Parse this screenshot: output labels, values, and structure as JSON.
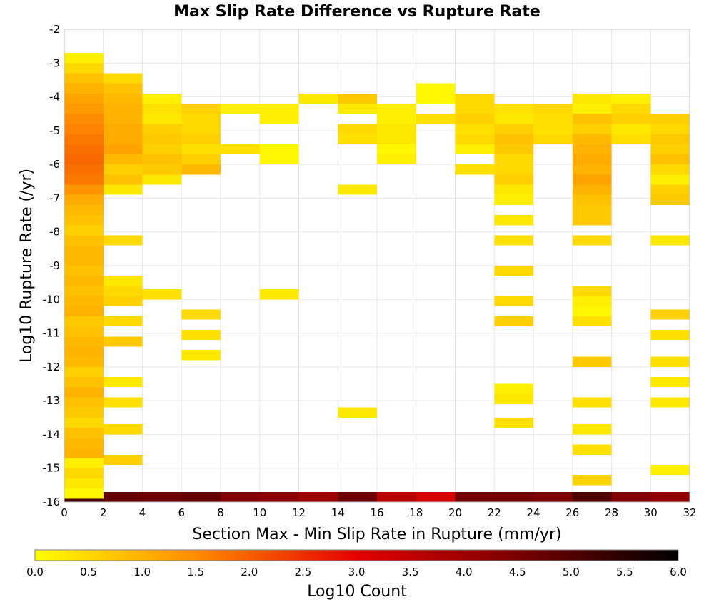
{
  "chart_data": {
    "type": "heatmap",
    "title": "Max Slip Rate Difference vs Rupture Rate",
    "xlabel": "Section Max - Min Slip Rate in Rupture (mm/yr)",
    "ylabel": "Log10 Rupture Rate (/yr)",
    "xlim": [
      0,
      32
    ],
    "ylim": [
      -16,
      -2
    ],
    "x_ticks": [
      0,
      2,
      4,
      6,
      8,
      10,
      12,
      14,
      16,
      18,
      20,
      22,
      24,
      26,
      28,
      30,
      32
    ],
    "y_ticks": [
      -2,
      -3,
      -4,
      -5,
      -6,
      -7,
      -8,
      -9,
      -10,
      -11,
      -12,
      -13,
      -14,
      -15,
      -16
    ],
    "grid": true,
    "colorbar": {
      "label": "Log10 Count",
      "min": 0.0,
      "max": 6.0,
      "ticks": [
        "0.0",
        "0.5",
        "1.0",
        "1.5",
        "2.0",
        "2.5",
        "3.0",
        "3.5",
        "4.0",
        "4.5",
        "5.0",
        "5.5",
        "6.0"
      ],
      "colormap": [
        {
          "v": 0.0,
          "c": "#ffff00"
        },
        {
          "v": 1.5,
          "c": "#ff8c00"
        },
        {
          "v": 3.0,
          "c": "#e60000"
        },
        {
          "v": 4.5,
          "c": "#7a0000"
        },
        {
          "v": 6.0,
          "c": "#000000"
        }
      ]
    },
    "cell_height": 0.3,
    "cells": [
      [
        0,
        -16.0,
        5.1
      ],
      [
        2,
        -16.0,
        4.8
      ],
      [
        4,
        -16.0,
        4.7
      ],
      [
        6,
        -16.0,
        4.8
      ],
      [
        8,
        -16.0,
        4.4
      ],
      [
        10,
        -16.0,
        4.3
      ],
      [
        12,
        -16.0,
        4.0
      ],
      [
        14,
        -16.0,
        4.7
      ],
      [
        16,
        -16.0,
        3.6
      ],
      [
        18,
        -16.0,
        3.2
      ],
      [
        20,
        -16.0,
        4.6
      ],
      [
        22,
        -16.0,
        4.6
      ],
      [
        24,
        -16.0,
        4.5
      ],
      [
        26,
        -16.0,
        5.0
      ],
      [
        28,
        -16.0,
        4.4
      ],
      [
        30,
        -16.0,
        4.2
      ],
      [
        0,
        -3.0,
        0.2
      ],
      [
        0,
        -3.3,
        0.5
      ],
      [
        0,
        -3.6,
        0.8
      ],
      [
        0,
        -3.9,
        1.0
      ],
      [
        0,
        -4.2,
        1.2
      ],
      [
        0,
        -4.5,
        1.3
      ],
      [
        0,
        -4.8,
        1.5
      ],
      [
        0,
        -5.1,
        1.6
      ],
      [
        0,
        -5.4,
        1.7
      ],
      [
        0,
        -5.7,
        1.8
      ],
      [
        0,
        -6.0,
        1.9
      ],
      [
        0,
        -6.3,
        1.8
      ],
      [
        0,
        -6.6,
        1.7
      ],
      [
        0,
        -6.9,
        1.4
      ],
      [
        0,
        -7.2,
        1.1
      ],
      [
        0,
        -7.5,
        0.9
      ],
      [
        0,
        -7.8,
        0.8
      ],
      [
        0,
        -8.1,
        0.6
      ],
      [
        0,
        -8.4,
        0.8
      ],
      [
        0,
        -8.7,
        0.9
      ],
      [
        0,
        -9.0,
        0.9
      ],
      [
        0,
        -9.3,
        0.8
      ],
      [
        0,
        -9.6,
        0.9
      ],
      [
        0,
        -9.9,
        0.8
      ],
      [
        0,
        -10.2,
        0.9
      ],
      [
        0,
        -10.5,
        1.0
      ],
      [
        0,
        -10.8,
        0.7
      ],
      [
        0,
        -11.1,
        0.8
      ],
      [
        0,
        -11.4,
        0.9
      ],
      [
        0,
        -11.7,
        1.0
      ],
      [
        0,
        -12.0,
        0.9
      ],
      [
        0,
        -12.3,
        0.6
      ],
      [
        0,
        -12.6,
        0.8
      ],
      [
        0,
        -12.9,
        1.0
      ],
      [
        0,
        -13.2,
        0.8
      ],
      [
        0,
        -13.5,
        0.7
      ],
      [
        0,
        -13.8,
        0.5
      ],
      [
        0,
        -14.1,
        0.8
      ],
      [
        0,
        -14.4,
        0.9
      ],
      [
        0,
        -14.7,
        1.0
      ],
      [
        0,
        -15.0,
        0.2
      ],
      [
        0,
        -15.3,
        0.5
      ],
      [
        0,
        -15.6,
        0.3
      ],
      [
        0,
        -15.9,
        0.1
      ],
      [
        2,
        -3.6,
        0.5
      ],
      [
        2,
        -3.9,
        0.8
      ],
      [
        2,
        -4.2,
        0.9
      ],
      [
        2,
        -4.5,
        1.0
      ],
      [
        2,
        -4.8,
        1.0
      ],
      [
        2,
        -5.1,
        1.1
      ],
      [
        2,
        -5.4,
        1.1
      ],
      [
        2,
        -5.7,
        1.2
      ],
      [
        2,
        -6.0,
        0.9
      ],
      [
        2,
        -6.3,
        0.6
      ],
      [
        2,
        -6.6,
        0.8
      ],
      [
        2,
        -6.9,
        0.3
      ],
      [
        2,
        -8.4,
        0.5
      ],
      [
        2,
        -9.6,
        0.3
      ],
      [
        2,
        -9.9,
        0.5
      ],
      [
        2,
        -10.2,
        0.6
      ],
      [
        2,
        -10.8,
        0.5
      ],
      [
        2,
        -11.4,
        0.7
      ],
      [
        2,
        -12.6,
        0.3
      ],
      [
        2,
        -13.2,
        0.4
      ],
      [
        2,
        -14.0,
        0.5
      ],
      [
        2,
        -14.9,
        0.6
      ],
      [
        4,
        -4.2,
        0.2
      ],
      [
        4,
        -4.5,
        0.4
      ],
      [
        4,
        -4.8,
        0.3
      ],
      [
        4,
        -5.1,
        0.6
      ],
      [
        4,
        -5.4,
        0.7
      ],
      [
        4,
        -5.7,
        0.6
      ],
      [
        4,
        -6.0,
        0.8
      ],
      [
        4,
        -6.3,
        0.7
      ],
      [
        4,
        -6.6,
        0.3
      ],
      [
        4,
        -10.0,
        0.4
      ],
      [
        6,
        -4.5,
        0.6
      ],
      [
        6,
        -4.8,
        0.5
      ],
      [
        6,
        -5.1,
        0.5
      ],
      [
        6,
        -5.4,
        0.6
      ],
      [
        6,
        -5.7,
        0.4
      ],
      [
        6,
        -6.0,
        0.6
      ],
      [
        6,
        -6.3,
        0.9
      ],
      [
        6,
        -10.6,
        0.5
      ],
      [
        6,
        -11.2,
        0.4
      ],
      [
        6,
        -11.8,
        0.3
      ],
      [
        8,
        -4.5,
        0.2
      ],
      [
        8,
        -5.7,
        0.4
      ],
      [
        10,
        -4.5,
        0.2
      ],
      [
        10,
        -4.8,
        0.2
      ],
      [
        10,
        -5.7,
        0.1
      ],
      [
        10,
        -6.0,
        0.1
      ],
      [
        10,
        -10.0,
        0.3
      ],
      [
        12,
        -4.2,
        0.3
      ],
      [
        14,
        -4.2,
        0.7
      ],
      [
        14,
        -4.5,
        0.3
      ],
      [
        14,
        -5.1,
        0.5
      ],
      [
        14,
        -5.4,
        0.4
      ],
      [
        14,
        -6.9,
        0.3
      ],
      [
        14,
        -13.5,
        0.3
      ],
      [
        16,
        -4.5,
        0.2
      ],
      [
        16,
        -4.8,
        0.2
      ],
      [
        16,
        -5.1,
        0.3
      ],
      [
        16,
        -5.4,
        0.3
      ],
      [
        16,
        -5.7,
        0.1
      ],
      [
        16,
        -6.0,
        0.2
      ],
      [
        18,
        -3.9,
        0.1
      ],
      [
        18,
        -4.2,
        0.1
      ],
      [
        18,
        -4.8,
        0.4
      ],
      [
        20,
        -4.2,
        0.5
      ],
      [
        20,
        -4.5,
        0.5
      ],
      [
        20,
        -4.8,
        0.6
      ],
      [
        20,
        -5.1,
        0.4
      ],
      [
        20,
        -5.4,
        0.5
      ],
      [
        20,
        -5.7,
        0.2
      ],
      [
        20,
        -6.3,
        0.4
      ],
      [
        22,
        -4.5,
        0.4
      ],
      [
        22,
        -4.8,
        0.3
      ],
      [
        22,
        -5.1,
        0.6
      ],
      [
        22,
        -5.4,
        0.8
      ],
      [
        22,
        -5.7,
        0.7
      ],
      [
        22,
        -6.0,
        0.5
      ],
      [
        22,
        -6.3,
        0.5
      ],
      [
        22,
        -6.6,
        0.6
      ],
      [
        22,
        -6.9,
        0.3
      ],
      [
        22,
        -7.2,
        0.2
      ],
      [
        22,
        -7.8,
        0.3
      ],
      [
        22,
        -8.4,
        0.4
      ],
      [
        22,
        -9.3,
        0.5
      ],
      [
        22,
        -10.2,
        0.5
      ],
      [
        22,
        -10.8,
        0.6
      ],
      [
        22,
        -12.8,
        0.2
      ],
      [
        22,
        -13.1,
        0.3
      ],
      [
        22,
        -13.8,
        0.4
      ],
      [
        24,
        -4.5,
        0.5
      ],
      [
        24,
        -4.8,
        0.4
      ],
      [
        24,
        -5.1,
        0.4
      ],
      [
        24,
        -5.4,
        0.5
      ],
      [
        26,
        -4.2,
        0.3
      ],
      [
        26,
        -4.5,
        0.2
      ],
      [
        26,
        -4.8,
        0.8
      ],
      [
        26,
        -5.1,
        0.6
      ],
      [
        26,
        -5.4,
        0.9
      ],
      [
        26,
        -5.7,
        1.0
      ],
      [
        26,
        -6.0,
        1.1
      ],
      [
        26,
        -6.3,
        1.0
      ],
      [
        26,
        -6.6,
        1.2
      ],
      [
        26,
        -6.9,
        1.0
      ],
      [
        26,
        -7.2,
        0.8
      ],
      [
        26,
        -7.5,
        0.7
      ],
      [
        26,
        -7.8,
        0.7
      ],
      [
        26,
        -8.4,
        0.5
      ],
      [
        26,
        -9.9,
        0.5
      ],
      [
        26,
        -10.2,
        0.2
      ],
      [
        26,
        -10.5,
        0.1
      ],
      [
        26,
        -10.8,
        0.4
      ],
      [
        26,
        -12.0,
        0.7
      ],
      [
        26,
        -13.2,
        0.4
      ],
      [
        26,
        -14.0,
        0.3
      ],
      [
        26,
        -14.6,
        0.4
      ],
      [
        26,
        -15.5,
        0.6
      ],
      [
        28,
        -4.2,
        0.2
      ],
      [
        28,
        -4.5,
        0.5
      ],
      [
        28,
        -4.8,
        0.6
      ],
      [
        28,
        -5.1,
        0.3
      ],
      [
        28,
        -5.4,
        0.4
      ],
      [
        30,
        -4.8,
        0.6
      ],
      [
        30,
        -5.1,
        0.5
      ],
      [
        30,
        -5.4,
        0.7
      ],
      [
        30,
        -5.7,
        0.6
      ],
      [
        30,
        -6.0,
        0.8
      ],
      [
        30,
        -6.3,
        0.5
      ],
      [
        30,
        -6.6,
        0.2
      ],
      [
        30,
        -6.9,
        0.6
      ],
      [
        30,
        -7.2,
        0.7
      ],
      [
        30,
        -8.4,
        0.3
      ],
      [
        30,
        -10.6,
        0.6
      ],
      [
        30,
        -11.2,
        0.4
      ],
      [
        30,
        -12.0,
        0.4
      ],
      [
        30,
        -12.6,
        0.3
      ],
      [
        30,
        -13.2,
        0.3
      ],
      [
        30,
        -15.2,
        0.2
      ]
    ]
  }
}
